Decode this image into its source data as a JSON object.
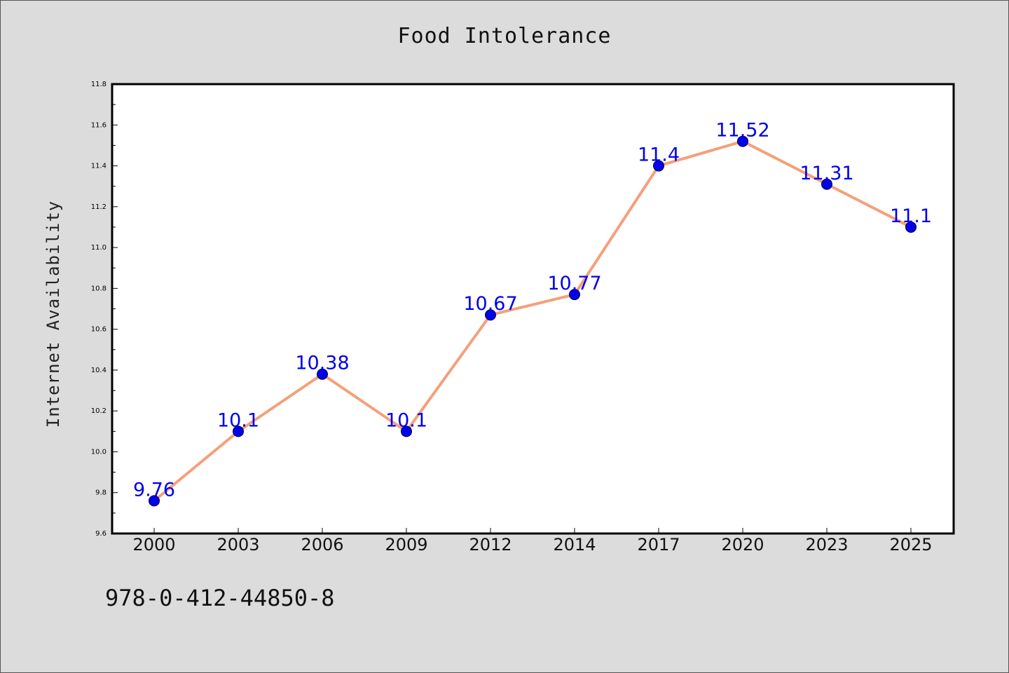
{
  "chart_data": {
    "type": "line",
    "title": "Food Intolerance",
    "xlabel": "",
    "ylabel": "Internet Availability",
    "categories": [
      "2000",
      "2003",
      "2006",
      "2009",
      "2012",
      "2014",
      "2017",
      "2020",
      "2023",
      "2025"
    ],
    "series": [
      {
        "values": [
          9.76,
          10.1,
          10.38,
          10.1,
          10.67,
          10.77,
          11.4,
          11.52,
          11.31,
          11.1
        ],
        "labels": [
          "9.76",
          "10.1",
          "10.38",
          "10.1",
          "10.67",
          "10.77",
          "11.4",
          "11.52",
          "11.31",
          "11.1"
        ],
        "line_color": "#f4a07a",
        "marker_color": "#0000ee",
        "label_color": "#0000ee"
      }
    ],
    "ylim": [
      9.6,
      11.8
    ],
    "yticks": [
      "9.6",
      "9.8",
      "10.0",
      "10.2",
      "10.4",
      "10.6",
      "10.8",
      "11.0",
      "11.2",
      "11.4",
      "11.6",
      "11.8"
    ],
    "grid": false,
    "legend": "none"
  },
  "footer": {
    "isbn": "978-0-412-44850-8"
  }
}
